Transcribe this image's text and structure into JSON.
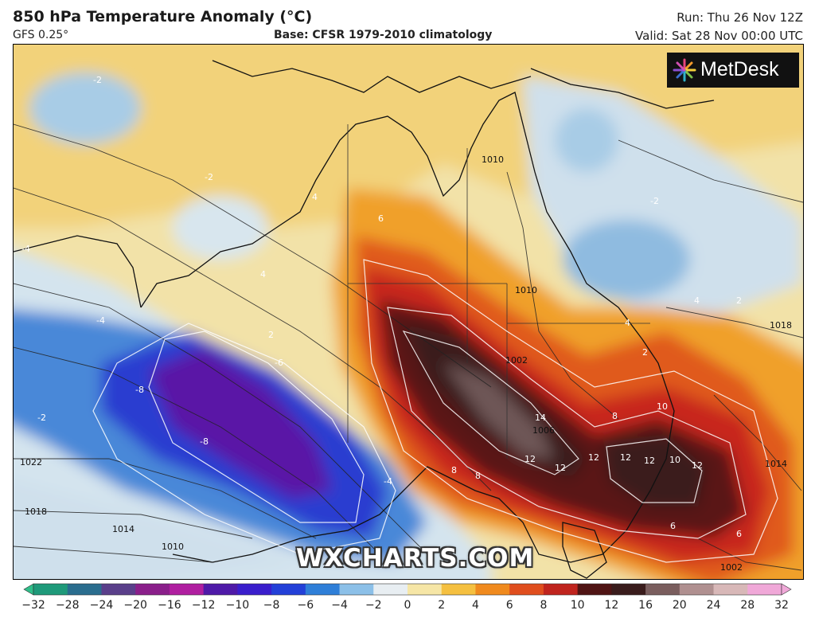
{
  "header": {
    "title": "850 hPa Temperature Anomaly (°C)",
    "model": "GFS 0.25°",
    "base": "Base: CFSR 1979-2010 climatology",
    "run": "Run: Thu 26 Nov 12Z",
    "valid": "Valid: Sat 28 Nov 00:00 UTC"
  },
  "logo": {
    "text": "MetDesk",
    "icon": "metdesk-burst-icon"
  },
  "watermark": "WXCHARTS.COM",
  "chart_data": {
    "type": "heatmap",
    "variable": "850 hPa Temperature Anomaly",
    "unit": "°C",
    "region": "Australia",
    "colorbar": {
      "ticks": [
        -32,
        -28,
        -24,
        -20,
        -16,
        -12,
        -10,
        -8,
        -6,
        -4,
        -2,
        0,
        2,
        4,
        6,
        8,
        10,
        12,
        16,
        20,
        24,
        28,
        32
      ],
      "colors": [
        "#2fbf8a",
        "#1f9a7a",
        "#2a6d8e",
        "#5a3f8a",
        "#8a1f8a",
        "#b01fa0",
        "#4f1aa8",
        "#3a1ecc",
        "#2340d8",
        "#2f7fd8",
        "#8cc0e8",
        "#e8eef2",
        "#f6e6a6",
        "#f5c040",
        "#f08a1e",
        "#e04e1e",
        "#c0241e",
        "#501414",
        "#3a1c1c",
        "#7a5e5e",
        "#b09090",
        "#d8b8b8",
        "#f0a8d8"
      ]
    },
    "anomaly_labels": [
      {
        "value": "-2"
      },
      {
        "value": "-2"
      },
      {
        "value": "-2"
      },
      {
        "value": "-4"
      },
      {
        "value": "-4"
      },
      {
        "value": "-6"
      },
      {
        "value": "-8"
      },
      {
        "value": "-8"
      },
      {
        "value": "-4"
      },
      {
        "value": "-2"
      },
      {
        "value": "2"
      },
      {
        "value": "2"
      },
      {
        "value": "4"
      },
      {
        "value": "4"
      },
      {
        "value": "4"
      },
      {
        "value": "4"
      },
      {
        "value": "6"
      },
      {
        "value": "6"
      },
      {
        "value": "6"
      },
      {
        "value": "8"
      },
      {
        "value": "8"
      },
      {
        "value": "8"
      },
      {
        "value": "10"
      },
      {
        "value": "10"
      },
      {
        "value": "12"
      },
      {
        "value": "12"
      },
      {
        "value": "12"
      },
      {
        "value": "12"
      },
      {
        "value": "12"
      },
      {
        "value": "12"
      },
      {
        "value": "14"
      },
      {
        "value": "2"
      }
    ],
    "isobar_labels": [
      {
        "value": "1022"
      },
      {
        "value": "1018"
      },
      {
        "value": "1014"
      },
      {
        "value": "1010"
      },
      {
        "value": "1010"
      },
      {
        "value": "1010"
      },
      {
        "value": "1002"
      },
      {
        "value": "1018"
      },
      {
        "value": "1014"
      },
      {
        "value": "1002"
      },
      {
        "value": "1006"
      }
    ]
  }
}
